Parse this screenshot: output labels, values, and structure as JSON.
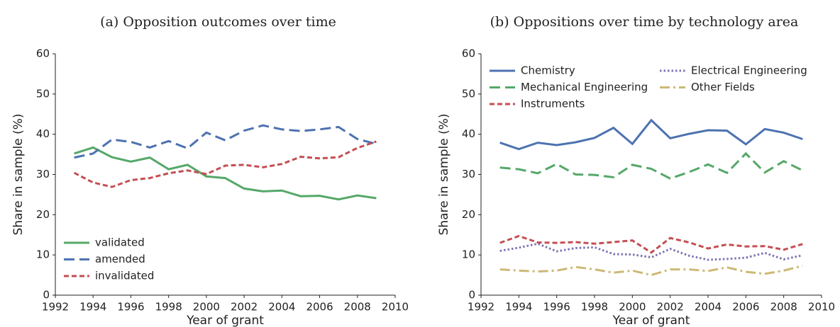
{
  "chart_data": [
    {
      "type": "line",
      "title": "(a) Opposition outcomes over time",
      "xlabel": "Year of grant",
      "ylabel": "Share in sample (%)",
      "x": [
        1993,
        1994,
        1995,
        1996,
        1997,
        1998,
        1999,
        2000,
        2001,
        2002,
        2003,
        2004,
        2005,
        2006,
        2007,
        2008,
        2009
      ],
      "xlim": [
        1992,
        2010
      ],
      "xticks": [
        1992,
        1994,
        1996,
        1998,
        2000,
        2002,
        2004,
        2006,
        2008,
        2010
      ],
      "ylim": [
        0,
        60
      ],
      "yticks": [
        0,
        10,
        20,
        30,
        40,
        50,
        60
      ],
      "legend": "lower left",
      "legend_columns": 1,
      "series": [
        {
          "name": "validated",
          "color": "#55a868",
          "dash": "solid",
          "values": [
            35.2,
            36.7,
            34.3,
            33.2,
            34.2,
            31.3,
            32.4,
            29.5,
            29.1,
            26.5,
            25.8,
            26.0,
            24.6,
            24.7,
            23.8,
            24.8,
            24.1
          ]
        },
        {
          "name": "amended",
          "color": "#4c72b0",
          "dash": "dashed",
          "values": [
            34.2,
            35.2,
            38.7,
            38.1,
            36.7,
            38.3,
            36.5,
            40.4,
            38.5,
            40.9,
            42.2,
            41.2,
            40.8,
            41.2,
            41.8,
            38.8,
            37.6
          ]
        },
        {
          "name": "invalidated",
          "color": "#c44e52",
          "dash": "densely dashed",
          "values": [
            30.4,
            28.0,
            26.9,
            28.6,
            29.1,
            30.3,
            31.0,
            30.1,
            32.2,
            32.4,
            31.8,
            32.6,
            34.4,
            34.0,
            34.3,
            36.6,
            38.2
          ]
        }
      ]
    },
    {
      "type": "line",
      "title": "(b) Oppositions over time by technology area",
      "xlabel": "Year of grant",
      "ylabel": "Share in sample (%)",
      "x": [
        1993,
        1994,
        1995,
        1996,
        1997,
        1998,
        1999,
        2000,
        2001,
        2002,
        2003,
        2004,
        2005,
        2006,
        2007,
        2008,
        2009
      ],
      "xlim": [
        1992,
        2010
      ],
      "xticks": [
        1992,
        1994,
        1996,
        1998,
        2000,
        2002,
        2004,
        2006,
        2008,
        2010
      ],
      "ylim": [
        0,
        60
      ],
      "yticks": [
        0,
        10,
        20,
        30,
        40,
        50,
        60
      ],
      "legend": "upper left",
      "legend_columns": 2,
      "series": [
        {
          "name": "Chemistry",
          "color": "#4c72b0",
          "dash": "solid",
          "values": [
            37.9,
            36.3,
            37.9,
            37.3,
            38.0,
            39.1,
            41.6,
            37.6,
            43.5,
            39.0,
            40.1,
            41.0,
            40.9,
            37.5,
            41.3,
            40.4,
            38.8
          ]
        },
        {
          "name": "Mechanical Engineering",
          "color": "#55a868",
          "dash": "dashed",
          "values": [
            31.7,
            31.3,
            30.3,
            32.6,
            30.0,
            29.9,
            29.3,
            32.4,
            31.4,
            29.0,
            30.6,
            32.5,
            30.4,
            35.2,
            30.5,
            33.3,
            31.0
          ]
        },
        {
          "name": "Instruments",
          "color": "#c44e52",
          "dash": "densely dashed",
          "values": [
            13.0,
            14.7,
            13.1,
            13.0,
            13.2,
            12.8,
            13.2,
            13.6,
            10.6,
            14.2,
            13.1,
            11.6,
            12.6,
            12.1,
            12.2,
            11.3,
            12.7
          ]
        },
        {
          "name": "Electrical Engineering",
          "color": "#8172b2",
          "dash": "dotted",
          "values": [
            11.0,
            11.8,
            12.8,
            10.9,
            11.7,
            11.9,
            10.2,
            10.1,
            9.4,
            11.5,
            9.8,
            8.8,
            9.0,
            9.3,
            10.5,
            8.9,
            9.9
          ]
        },
        {
          "name": "Other Fields",
          "color": "#ccb974",
          "dash": "dashdot",
          "values": [
            6.4,
            6.1,
            5.9,
            6.1,
            7.0,
            6.4,
            5.6,
            6.1,
            5.0,
            6.4,
            6.4,
            6.0,
            6.9,
            5.8,
            5.3,
            6.1,
            7.3
          ]
        }
      ]
    }
  ]
}
